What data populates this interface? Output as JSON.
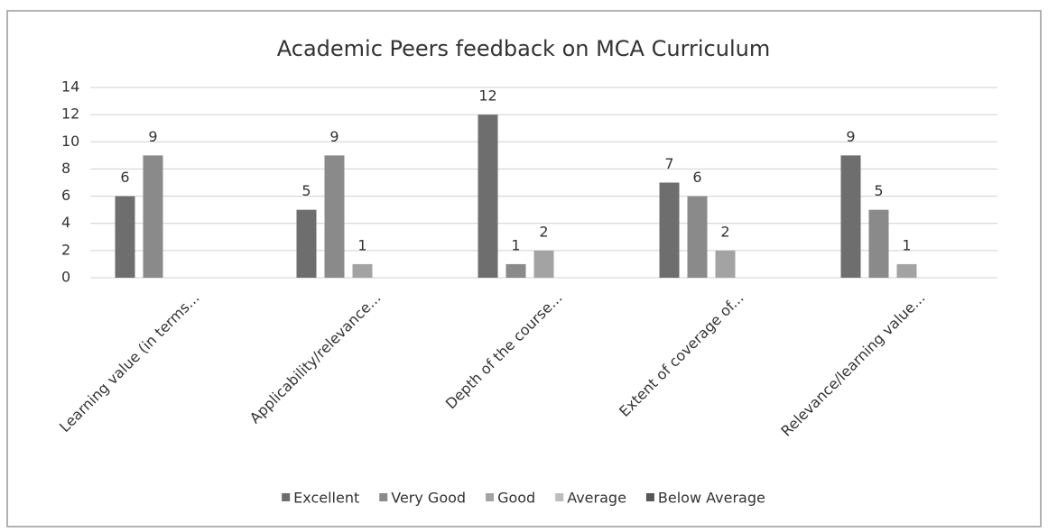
{
  "chart_data": {
    "type": "bar",
    "title": "Academic Peers feedback on MCA Curriculum",
    "categories": [
      "Learning value (in terms...",
      "Applicability/relevance...",
      "Depth of the course...",
      "Extent of coverage of...",
      "Relevance/learning value..."
    ],
    "series": [
      {
        "name": "Excellent",
        "color": "#6e6e6e",
        "values": [
          6,
          5,
          12,
          7,
          9
        ]
      },
      {
        "name": "Very Good",
        "color": "#8a8a8a",
        "values": [
          9,
          9,
          1,
          6,
          5
        ]
      },
      {
        "name": "Good",
        "color": "#a3a3a3",
        "values": [
          null,
          1,
          2,
          2,
          1
        ]
      },
      {
        "name": "Average",
        "color": "#bdbdbd",
        "values": [
          null,
          null,
          null,
          null,
          null
        ]
      },
      {
        "name": "Below Average",
        "color": "#555555",
        "values": [
          null,
          null,
          null,
          null,
          null
        ]
      }
    ],
    "ylim": [
      0,
      14
    ],
    "yticks": [
      0,
      2,
      4,
      6,
      8,
      10,
      12,
      14
    ],
    "grid": true,
    "legend": "bottom"
  }
}
